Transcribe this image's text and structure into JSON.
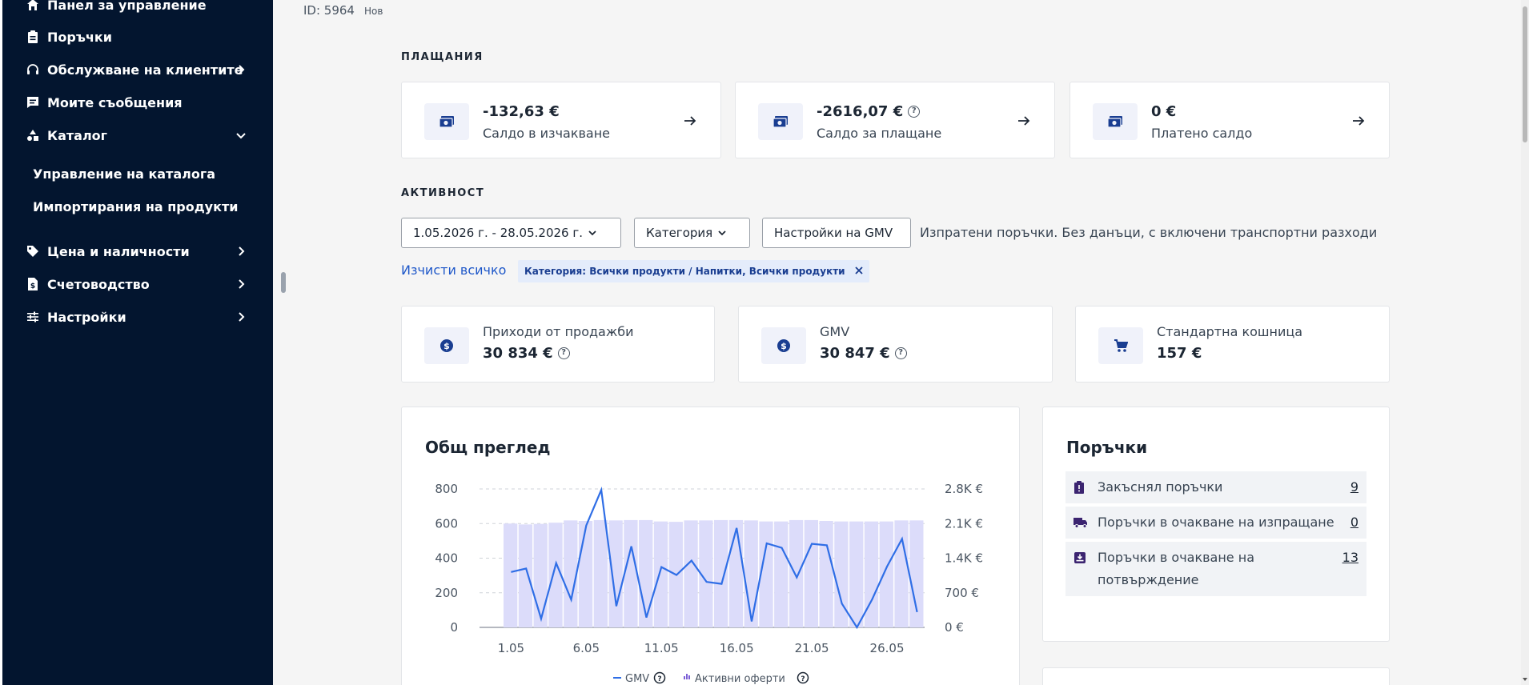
{
  "sidebar": {
    "items": [
      {
        "label": "Панел за управление",
        "icon": "home-icon"
      },
      {
        "label": "Поръчки",
        "icon": "clipboard-icon"
      },
      {
        "label": "Обслужване на клиентите",
        "icon": "headset-icon"
      },
      {
        "label": "Моите съобщения",
        "icon": "message-icon"
      },
      {
        "label": "Каталог",
        "icon": "shapes-icon"
      },
      {
        "label": "Цена и наличности",
        "icon": "tag-icon"
      },
      {
        "label": "Счетоводство",
        "icon": "invoice-icon"
      },
      {
        "label": "Настройки",
        "icon": "sliders-icon"
      }
    ],
    "catalog_subitems": [
      {
        "label": "Управление на каталога"
      },
      {
        "label": "Импортирания на продукти"
      }
    ]
  },
  "header": {
    "id": "ID: 5964",
    "badge": "Нов"
  },
  "payments": {
    "title": "ПЛАЩАНИЯ",
    "cards": [
      {
        "value": "-132,63 €",
        "label": "Салдо в изчакване"
      },
      {
        "value": "-2616,07 €",
        "label": "Салдо за плащане"
      },
      {
        "value": "0 €",
        "label": "Платено салдо"
      }
    ]
  },
  "activity": {
    "title": "АКТИВНОСТ",
    "date_range": "1.05.2026 г. - 28.05.2026 г.",
    "category_label": "Категория",
    "gmv_settings": "Настройки на GMV",
    "note": "Изпратени поръчки. Без данъци, с включени транспортни разходи",
    "clear_all": "Изчисти всичко",
    "chip": "Категория: Всички продукти / Напитки, Всички продукти"
  },
  "kpis": [
    {
      "label": "Приходи от продажби",
      "value": "30 834 €"
    },
    {
      "label": "GMV",
      "value": "30 847 €"
    },
    {
      "label": "Стандартна кошница",
      "value": "157 €"
    }
  ],
  "overview": {
    "title": "Общ преглед"
  },
  "chart_data": {
    "type": "bar",
    "categories": [
      "1.05",
      "2.05",
      "3.05",
      "4.05",
      "5.05",
      "6.05",
      "7.05",
      "8.05",
      "9.05",
      "10.05",
      "11.05",
      "12.05",
      "13.05",
      "14.05",
      "15.05",
      "16.05",
      "17.05",
      "18.05",
      "19.05",
      "20.05",
      "21.05",
      "22.05",
      "23.05",
      "24.05",
      "25.05",
      "26.05",
      "27.05",
      "28.05"
    ],
    "x_tick_labels": [
      "1.05",
      "6.05",
      "11.05",
      "16.05",
      "21.05",
      "26.05"
    ],
    "series": [
      {
        "name": "Активни оферти",
        "type": "bar",
        "axis": "left",
        "values": [
          600,
          595,
          598,
          605,
          618,
          615,
          620,
          618,
          620,
          620,
          612,
          610,
          618,
          618,
          620,
          620,
          618,
          612,
          612,
          620,
          620,
          615,
          612,
          612,
          612,
          612,
          618,
          618
        ]
      },
      {
        "name": "GMV",
        "type": "line",
        "axis": "right",
        "values": [
          1120,
          1190,
          175,
          1300,
          560,
          2060,
          2780,
          430,
          1640,
          200,
          1220,
          1060,
          1350,
          920,
          880,
          2010,
          120,
          1700,
          1610,
          1010,
          1690,
          1660,
          480,
          0,
          560,
          1230,
          1790,
          310
        ]
      }
    ],
    "left_axis": {
      "ylim": [
        0,
        800
      ],
      "ticks": [
        "0",
        "200",
        "400",
        "600",
        "800"
      ]
    },
    "right_axis": {
      "ylim": [
        0,
        2800
      ],
      "ticks": [
        "0 €",
        "700 €",
        "1.4K €",
        "2.1K €",
        "2.8K €"
      ]
    },
    "legend": {
      "position": "bottom"
    },
    "colors": {
      "bar": "#dcdcfa",
      "line": "#2f6ee6",
      "grid": "#cfd3d8"
    }
  },
  "orders": {
    "title": "Поръчки",
    "items": [
      {
        "label": "Закъснял поръчки",
        "count": "9",
        "icon": "alert-box-icon"
      },
      {
        "label": "Поръчки в очакване на изпращане",
        "count": "0",
        "icon": "truck-icon"
      },
      {
        "label": "Поръчки в очакване на потвърждение",
        "count": "13",
        "icon": "inbox-download-icon"
      }
    ]
  }
}
